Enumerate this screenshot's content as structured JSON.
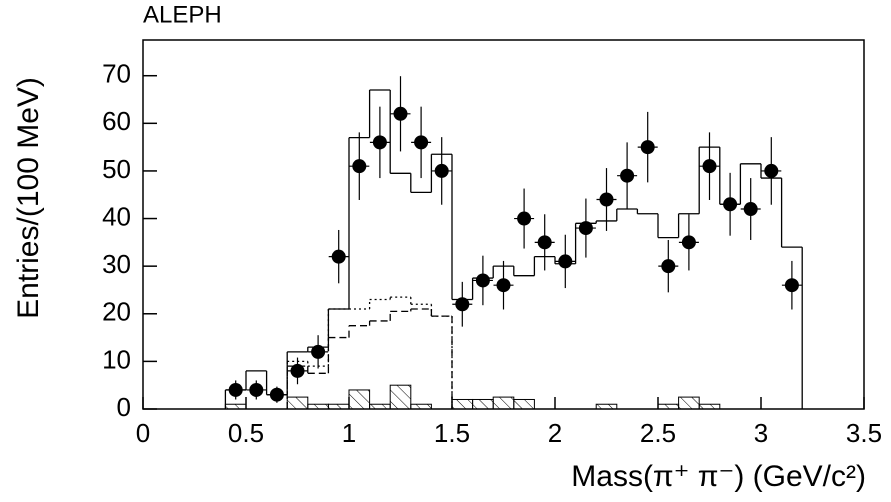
{
  "chart_data": {
    "type": "histogram",
    "title": "ALEPH",
    "x_label": "Mass(π⁺ π⁻) (GeV/c²)",
    "y_label": "Entries/(100 MeV)",
    "xlim": [
      0,
      3.5
    ],
    "ylim": [
      0,
      77.5
    ],
    "xticks": [
      0,
      0.5,
      1,
      1.5,
      2,
      2.5,
      3,
      3.5
    ],
    "yticks": [
      0,
      10,
      20,
      30,
      40,
      50,
      60,
      70
    ],
    "points": {
      "color": "#000000",
      "x": [
        0.45,
        0.55,
        0.65,
        0.75,
        0.85,
        0.95,
        1.05,
        1.15,
        1.25,
        1.35,
        1.45,
        1.55,
        1.65,
        1.75,
        1.85,
        1.95,
        2.05,
        2.15,
        2.25,
        2.35,
        2.45,
        2.55,
        2.65,
        2.75,
        2.85,
        2.95,
        3.05,
        3.15
      ],
      "values": [
        4,
        4,
        3,
        8,
        12,
        32,
        51,
        56,
        62,
        56,
        50,
        22,
        27,
        26,
        40,
        35,
        31,
        38,
        44,
        49,
        55,
        30,
        35,
        51,
        43,
        42,
        50,
        26
      ],
      "errors": [
        2,
        2,
        1.7,
        2.8,
        3.5,
        5.6,
        7.1,
        7.5,
        7.9,
        7.5,
        7.1,
        4.7,
        5.2,
        5.1,
        6.3,
        5.9,
        5.6,
        6.2,
        6.6,
        7,
        7.4,
        5.5,
        5.9,
        7.1,
        6.6,
        6.5,
        7.1,
        5.1
      ]
    },
    "histograms": [
      {
        "style": "solid",
        "color": "#000000",
        "bins": [
          0.4,
          0.5,
          0.6,
          0.7,
          0.8,
          0.9,
          1.0,
          1.1,
          1.2,
          1.3,
          1.4,
          1.5,
          1.6,
          1.7,
          1.8,
          1.9,
          2.0,
          2.1,
          2.2,
          2.3,
          2.4,
          2.5,
          2.6,
          2.7,
          2.8,
          2.9,
          3.0,
          3.1,
          3.2
        ],
        "counts": [
          4,
          8,
          3,
          12,
          13,
          21,
          57,
          67,
          49.5,
          45.5,
          53.5,
          23,
          27.5,
          30,
          28,
          32,
          30.5,
          39,
          39.5,
          42,
          41,
          36,
          41,
          55,
          43,
          51.5,
          48.5,
          34
        ]
      },
      {
        "style": "dashed",
        "color": "#000000",
        "bins": [
          0.7,
          0.8,
          0.9,
          1.0,
          1.1,
          1.2,
          1.3,
          1.4,
          1.5
        ],
        "counts": [
          9,
          7.5,
          15,
          17.5,
          18.5,
          20.5,
          21,
          19.5
        ]
      },
      {
        "style": "dotted",
        "color": "#000000",
        "bins": [
          0.7,
          0.8,
          0.9,
          1.0,
          1.1,
          1.2,
          1.3,
          1.4,
          1.5
        ],
        "counts": [
          10,
          9,
          21,
          21,
          23,
          23.5,
          22,
          19.5
        ]
      },
      {
        "style": "hatched",
        "color": "#000000",
        "bins": [
          0.4,
          0.5,
          0.6,
          0.7,
          0.8,
          0.9,
          1.0,
          1.1,
          1.2,
          1.3,
          1.4,
          1.5,
          1.6,
          1.7,
          1.8,
          1.9,
          2.0,
          2.1,
          2.2,
          2.3,
          2.4,
          2.5,
          2.6,
          2.7,
          2.8,
          2.9,
          3.0,
          3.1,
          3.2
        ],
        "counts": [
          1,
          0,
          0,
          2.5,
          1,
          1,
          4,
          1,
          5,
          1,
          0,
          2,
          2,
          2.5,
          2,
          0,
          0,
          0,
          1,
          0,
          0,
          1,
          2.5,
          1,
          0,
          0,
          0,
          0
        ]
      }
    ]
  }
}
